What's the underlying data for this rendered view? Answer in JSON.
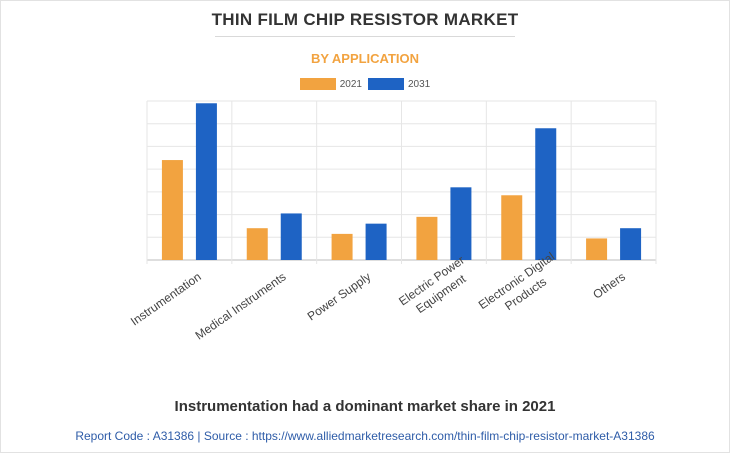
{
  "chart_data": {
    "type": "bar",
    "title": "THIN FILM CHIP RESISTOR MARKET",
    "subtitle": "BY APPLICATION",
    "categories": [
      [
        "Instrumentation"
      ],
      [
        "Medical Instruments"
      ],
      [
        "Power Supply"
      ],
      [
        "Electric Power",
        "Equipment"
      ],
      [
        "Electronic Digital",
        "Products"
      ],
      [
        "Others"
      ]
    ],
    "series": [
      {
        "name": "2021",
        "color": "#f2a340",
        "values": [
          4.4,
          1.4,
          1.15,
          1.9,
          2.85,
          0.95
        ]
      },
      {
        "name": "2031",
        "color": "#1e63c4",
        "values": [
          6.9,
          2.05,
          1.6,
          3.2,
          5.8,
          1.4
        ]
      }
    ],
    "ylim": [
      0,
      7
    ],
    "y_ticks": [
      0,
      1,
      2,
      3,
      4,
      5,
      6,
      7
    ],
    "y_tick_labels_shown": false,
    "grid": true,
    "legend_position": "top-center",
    "xlabel": "",
    "ylabel": ""
  },
  "caption": "Instrumentation had a dominant market share in 2021",
  "source": "Report Code : A31386  |  Source : https://www.alliedmarketresearch.com/thin-film-chip-resistor-market-A31386"
}
